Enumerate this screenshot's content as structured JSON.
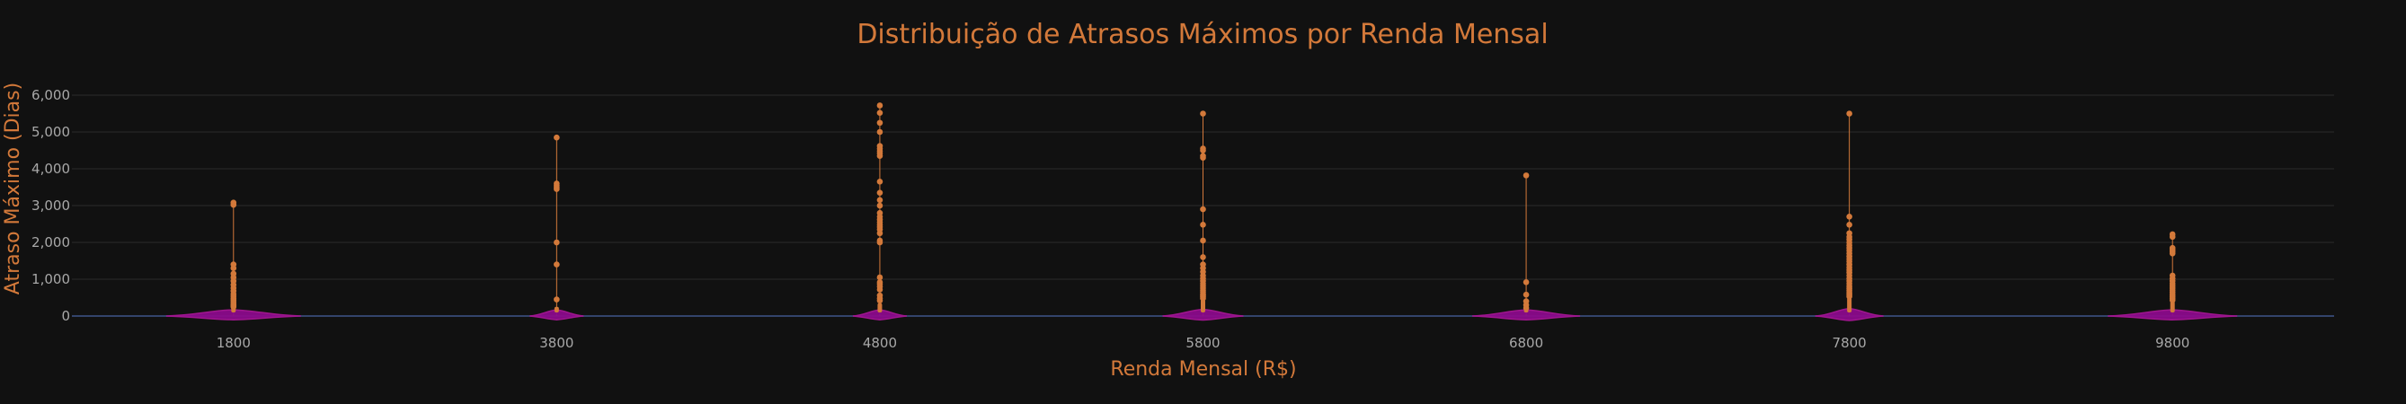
{
  "colors": {
    "background": "#111111",
    "accent": "#d3793a",
    "violin_fill": "#8b0b8b",
    "violin_line": "#a0168f",
    "grid": "#2a2a2a",
    "zero_line": "#33446b",
    "tick_text": "#a8a8a8"
  },
  "chart_data": {
    "type": "violin",
    "title": "Distribuição de Atrasos Máximos por Renda Mensal",
    "xlabel": "Renda Mensal (R$)",
    "ylabel": "Atraso Máximo (Dias)",
    "ylim": [
      -300,
      6600
    ],
    "yticks": [
      0,
      1000,
      2000,
      3000,
      4000,
      5000,
      6000
    ],
    "ytick_labels": [
      "0",
      "1,000",
      "2,000",
      "3,000",
      "4,000",
      "5,000",
      "6,000"
    ],
    "grid": true,
    "legend": "none",
    "categories": [
      "1800",
      "3800",
      "4800",
      "5800",
      "6800",
      "7800",
      "9800"
    ],
    "groups": [
      {
        "x": "1800",
        "max": 3080,
        "bulk_max": 420,
        "outliers": [
          3080,
          3020,
          1400,
          1300,
          1150,
          1050,
          950,
          850,
          760,
          680,
          600,
          540,
          480,
          430,
          380,
          330,
          290,
          250
        ]
      },
      {
        "x": "3800",
        "max": 4850,
        "bulk_max": 250,
        "outliers": [
          4850,
          3600,
          3550,
          3500,
          3450,
          2000,
          1400,
          450
        ]
      },
      {
        "x": "4800",
        "max": 5720,
        "bulk_max": 350,
        "outliers": [
          5720,
          5520,
          5250,
          5000,
          4620,
          4550,
          4480,
          4420,
          4350,
          3650,
          3350,
          3150,
          3000,
          2800,
          2700,
          2620,
          2550,
          2480,
          2420,
          2350,
          2250,
          2050,
          2000,
          1050,
          920,
          870,
          800,
          720,
          560,
          480,
          420
        ]
      },
      {
        "x": "5800",
        "max": 5500,
        "bulk_max": 450,
        "outliers": [
          5500,
          4550,
          4500,
          4350,
          4300,
          2900,
          2480,
          2050,
          1600,
          1400,
          1300,
          1200,
          1100,
          1020,
          950,
          880,
          820,
          760,
          700,
          650,
          600,
          560,
          520,
          480
        ]
      },
      {
        "x": "6800",
        "max": 3820,
        "bulk_max": 180,
        "outliers": [
          3820,
          920,
          580,
          400,
          300,
          220
        ]
      },
      {
        "x": "7800",
        "max": 5500,
        "bulk_max": 500,
        "outliers": [
          5500,
          2700,
          2480,
          2250,
          2150,
          2080,
          2000,
          1920,
          1850,
          1780,
          1700,
          1620,
          1550,
          1480,
          1400,
          1320,
          1250,
          1180,
          1100,
          1020,
          950,
          880,
          810,
          750,
          690,
          630,
          580,
          530
        ]
      },
      {
        "x": "9800",
        "max": 2220,
        "bulk_max": 400,
        "outliers": [
          2220,
          2150,
          1850,
          1800,
          1750,
          1700,
          1100,
          1020,
          950,
          880,
          820,
          760,
          700,
          640,
          580,
          530,
          480,
          430
        ]
      }
    ]
  }
}
